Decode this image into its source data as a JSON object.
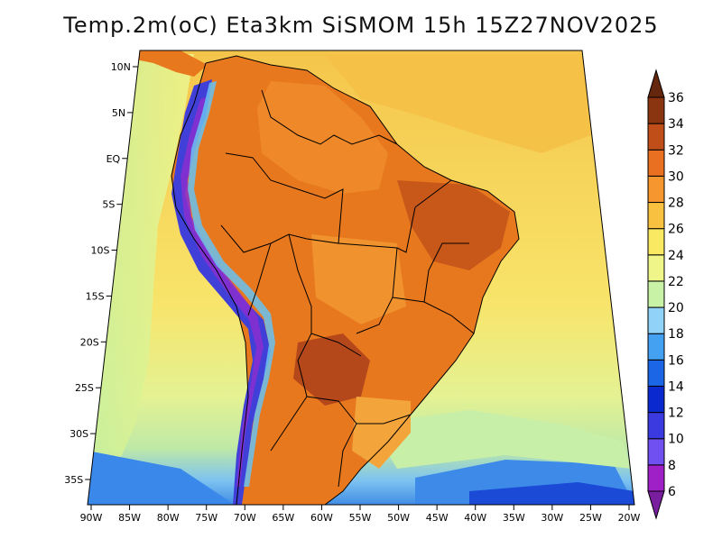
{
  "title": "Temp.2m(oC) Eta3km SiSMOM 15h 15Z27NOV2025",
  "map": {
    "lat_ticks": [
      "10N",
      "5N",
      "EQ",
      "5S",
      "10S",
      "15S",
      "20S",
      "25S",
      "30S",
      "35S"
    ],
    "lat_values": [
      10,
      5,
      0,
      -5,
      -10,
      -15,
      -20,
      -25,
      -30,
      -35
    ],
    "lon_ticks": [
      "90W",
      "85W",
      "80W",
      "75W",
      "70W",
      "65W",
      "60W",
      "55W",
      "50W",
      "45W",
      "40W",
      "35W",
      "30W",
      "25W",
      "20W"
    ],
    "lon_values": [
      -90,
      -85,
      -80,
      -75,
      -70,
      -65,
      -60,
      -55,
      -50,
      -45,
      -40,
      -35,
      -30,
      -25,
      -20
    ]
  },
  "colorbar": {
    "units": "oC",
    "levels": [
      6,
      8,
      10,
      12,
      14,
      16,
      18,
      20,
      22,
      24,
      26,
      28,
      30,
      32,
      34,
      36
    ],
    "labels": [
      "6",
      "8",
      "10",
      "12",
      "14",
      "16",
      "18",
      "20",
      "22",
      "24",
      "26",
      "28",
      "30",
      "32",
      "34",
      "36"
    ],
    "colors": [
      "#7a1ea0",
      "#a020c8",
      "#7050f0",
      "#3a3ae0",
      "#0a2ad0",
      "#1a66e6",
      "#44a0f0",
      "#90d2f8",
      "#c8f2a6",
      "#f0f58a",
      "#f8e862",
      "#f8c240",
      "#f5962e",
      "#e87020",
      "#c04e18",
      "#8a3410",
      "#64260c"
    ]
  },
  "colors": {
    "ocean_warm": "#f6cf55",
    "ocean_mid": "#f8e46a",
    "ocean_cool": "#d2f2a0",
    "ocean_cold": "#4a9ff0",
    "land_hot": "#e8781e",
    "land_very_hot": "#c04e18",
    "andes": "#4040d8",
    "border": "#000000"
  }
}
